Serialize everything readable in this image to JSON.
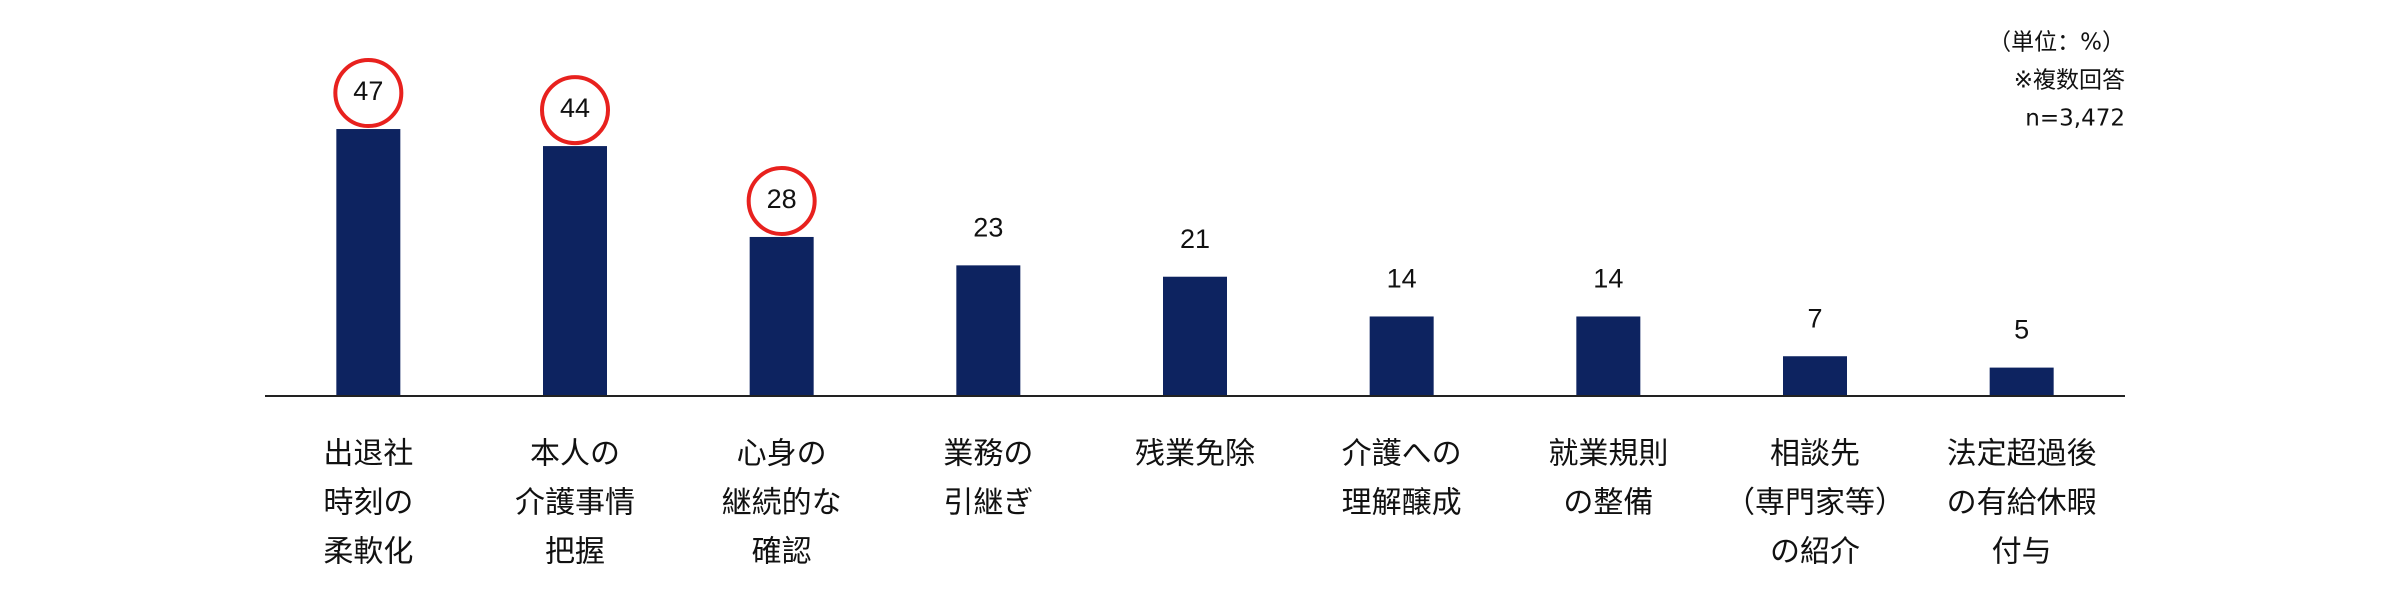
{
  "chart_data": {
    "type": "bar",
    "notes": [
      "（単位：%）",
      "※複数回答",
      "n=3,472"
    ],
    "categories": [
      [
        "出退社",
        "時刻の",
        "柔軟化"
      ],
      [
        "本人の",
        "介護事情",
        "把握"
      ],
      [
        "心身の",
        "継続的な",
        "確認"
      ],
      [
        "業務の",
        "引継ぎ"
      ],
      [
        "残業免除"
      ],
      [
        "介護への",
        "理解醸成"
      ],
      [
        "就業規則",
        "の整備"
      ],
      [
        "相談先",
        "（専門家等）",
        "の紹介"
      ],
      [
        "法定超過後",
        "の有給休暇",
        "付与"
      ]
    ],
    "values": [
      47,
      44,
      28,
      23,
      21,
      14,
      14,
      7,
      5
    ],
    "color": "#0d2360",
    "highlighted": [
      true,
      true,
      true,
      false,
      false,
      false,
      false,
      false,
      false
    ],
    "highlight_color": "#e8211e",
    "ylim": [
      0,
      50
    ]
  }
}
